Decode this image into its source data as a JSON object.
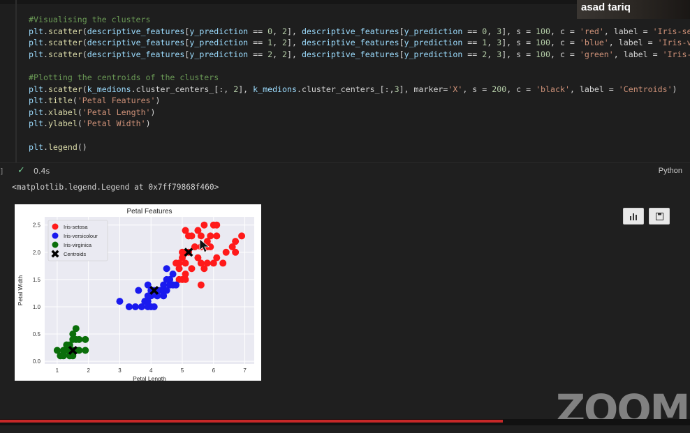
{
  "code": {
    "lines": [
      {
        "text": "#Visualising the clusters",
        "kind": "comment"
      },
      {
        "text": "plt.scatter(descriptive_features[y_prediction == 0, 2], descriptive_features[y_prediction == 0, 3], s = 100, c = 'red', label = 'Iris-setosa'",
        "kind": "code"
      },
      {
        "text": "plt.scatter(descriptive_features[y_prediction == 1, 2], descriptive_features[y_prediction == 1, 3], s = 100, c = 'blue', label = 'Iris-versic",
        "kind": "code"
      },
      {
        "text": "plt.scatter(descriptive_features[y_prediction == 2, 2], descriptive_features[y_prediction == 2, 3], s = 100, c = 'green', label = 'Iris-virgi",
        "kind": "code"
      },
      {
        "text": "",
        "kind": "blank"
      },
      {
        "text": "#Plotting the centroids of the clusters",
        "kind": "comment"
      },
      {
        "text": "plt.scatter(k_medions.cluster_centers_[:, 2], k_medions.cluster_centers_[:,3], marker='X', s = 200, c = 'black', label = 'Centroids')",
        "kind": "code"
      },
      {
        "text": "plt.title('Petal Features')",
        "kind": "code"
      },
      {
        "text": "plt.xlabel('Petal Length')",
        "kind": "code"
      },
      {
        "text": "plt.ylabel('Petal Width')",
        "kind": "code"
      },
      {
        "text": "",
        "kind": "blank"
      },
      {
        "text": "plt.legend()",
        "kind": "code"
      }
    ]
  },
  "status": {
    "bracket": "]",
    "check_icon": "check-icon",
    "exec_time": "0.4s",
    "language": "Python"
  },
  "output": {
    "repr": "<matplotlib.legend.Legend at 0x7ff79868f460>"
  },
  "zoom": {
    "speaker_name": "asad tariq",
    "logo_text": "ZOOM"
  },
  "toolbar": {
    "chart_icon": "bar-chart-icon",
    "save_icon": "save-icon"
  },
  "colors": {
    "setosa": "#ff1a1a",
    "versicolour": "#1a1aee",
    "virginica": "#0a6e0a",
    "centroid": "#000000",
    "axes_bg": "#eaeaf2",
    "grid": "#ffffff"
  },
  "chart_data": {
    "type": "scatter",
    "title": "Petal Features",
    "xlabel": "Petal Length",
    "ylabel": "Petal Width",
    "xlim": [
      0.6,
      7.3
    ],
    "ylim": [
      -0.05,
      2.65
    ],
    "xticks": [
      "1",
      "2",
      "3",
      "4",
      "5",
      "6",
      "7"
    ],
    "yticks": [
      "0.0",
      "0.5",
      "1.0",
      "1.5",
      "2.0",
      "2.5"
    ],
    "grid": true,
    "legend_position": "top-left",
    "series": [
      {
        "name": "Iris-setosa",
        "color": "#ff1a1a",
        "marker": "o",
        "points": [
          [
            5.1,
            2.4
          ],
          [
            5.3,
            2.3
          ],
          [
            5.5,
            2.4
          ],
          [
            5.7,
            2.5
          ],
          [
            5.9,
            2.3
          ],
          [
            6.0,
            2.5
          ],
          [
            6.1,
            2.5
          ],
          [
            5.6,
            2.3
          ],
          [
            5.2,
            2.3
          ],
          [
            5.8,
            2.2
          ],
          [
            6.1,
            2.3
          ],
          [
            5.4,
            2.1
          ],
          [
            5.6,
            2.1
          ],
          [
            5.8,
            2.1
          ],
          [
            5.0,
            2.0
          ],
          [
            5.2,
            2.0
          ],
          [
            5.5,
            1.9
          ],
          [
            5.0,
            1.9
          ],
          [
            5.1,
            1.8
          ],
          [
            5.6,
            1.8
          ],
          [
            5.8,
            1.8
          ],
          [
            6.0,
            1.8
          ],
          [
            6.3,
            1.8
          ],
          [
            6.7,
            2.0
          ],
          [
            6.9,
            2.3
          ],
          [
            6.6,
            2.1
          ],
          [
            6.4,
            2.0
          ],
          [
            6.1,
            1.9
          ],
          [
            5.7,
            1.7
          ],
          [
            5.3,
            1.7
          ],
          [
            4.9,
            1.8
          ],
          [
            4.9,
            1.7
          ],
          [
            5.0,
            1.5
          ],
          [
            5.1,
            1.6
          ],
          [
            5.1,
            1.5
          ],
          [
            4.9,
            1.5
          ],
          [
            5.6,
            1.4
          ],
          [
            6.7,
            2.2
          ],
          [
            5.9,
            2.1
          ],
          [
            4.8,
            1.8
          ]
        ]
      },
      {
        "name": "Iris-versicolour",
        "color": "#1a1aee",
        "marker": "o",
        "points": [
          [
            3.0,
            1.1
          ],
          [
            3.3,
            1.0
          ],
          [
            3.5,
            1.0
          ],
          [
            3.7,
            1.0
          ],
          [
            3.8,
            1.1
          ],
          [
            3.9,
            1.0
          ],
          [
            4.0,
            1.0
          ],
          [
            4.1,
            1.0
          ],
          [
            3.9,
            1.1
          ],
          [
            4.0,
            1.2
          ],
          [
            4.2,
            1.2
          ],
          [
            4.4,
            1.3
          ],
          [
            4.5,
            1.5
          ],
          [
            4.6,
            1.4
          ],
          [
            4.7,
            1.4
          ],
          [
            4.5,
            1.3
          ],
          [
            4.3,
            1.3
          ],
          [
            4.4,
            1.4
          ],
          [
            4.7,
            1.6
          ],
          [
            4.5,
            1.7
          ],
          [
            4.6,
            1.5
          ],
          [
            4.2,
            1.3
          ],
          [
            4.1,
            1.3
          ],
          [
            3.9,
            1.2
          ],
          [
            3.6,
            1.3
          ],
          [
            4.8,
            1.4
          ],
          [
            4.4,
            1.2
          ],
          [
            4.0,
            1.3
          ],
          [
            3.9,
            1.4
          ]
        ]
      },
      {
        "name": "Iris-virginica",
        "color": "#0a6e0a",
        "marker": "o",
        "points": [
          [
            1.0,
            0.2
          ],
          [
            1.1,
            0.1
          ],
          [
            1.2,
            0.2
          ],
          [
            1.3,
            0.2
          ],
          [
            1.4,
            0.2
          ],
          [
            1.5,
            0.2
          ],
          [
            1.6,
            0.2
          ],
          [
            1.7,
            0.2
          ],
          [
            1.9,
            0.2
          ],
          [
            1.4,
            0.3
          ],
          [
            1.5,
            0.4
          ],
          [
            1.6,
            0.4
          ],
          [
            1.7,
            0.4
          ],
          [
            1.9,
            0.4
          ],
          [
            1.5,
            0.5
          ],
          [
            1.6,
            0.6
          ],
          [
            1.5,
            0.1
          ],
          [
            1.3,
            0.3
          ],
          [
            1.4,
            0.1
          ],
          [
            1.2,
            0.1
          ]
        ]
      },
      {
        "name": "Centroids",
        "color": "#000000",
        "marker": "X",
        "points": [
          [
            1.5,
            0.2
          ],
          [
            4.1,
            1.3
          ],
          [
            5.2,
            2.0
          ]
        ]
      }
    ]
  }
}
